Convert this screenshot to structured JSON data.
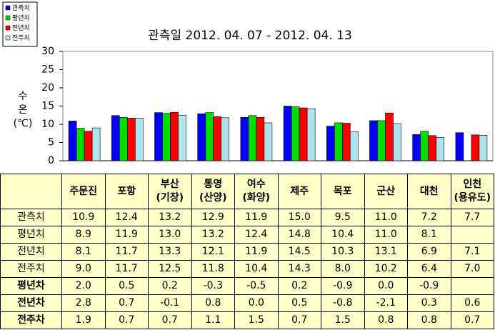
{
  "chart_data": {
    "type": "bar",
    "title": "관측일 2012. 04. 07  -  2012. 04. 13",
    "y_label": "수\n온\n(℃)",
    "categories": [
      "주문진",
      "포항",
      "부산\n(기장)",
      "통영\n(산양)",
      "여수\n(화양)",
      "제주",
      "목포",
      "군산",
      "대천",
      "인천\n(용유도)"
    ],
    "ylim": [
      0,
      30
    ],
    "yticks": [
      0,
      5,
      10,
      15,
      20,
      25,
      30
    ],
    "grid": false,
    "legend": "top-left",
    "series": [
      {
        "name": "관측치",
        "color": "#0000ff",
        "values": [
          10.9,
          12.4,
          13.2,
          12.9,
          11.9,
          15.0,
          9.5,
          11.0,
          7.2,
          7.7
        ],
        "value_labels": [
          "10.9",
          "12.4",
          "13.2",
          "12.9",
          "11.9",
          "15.0",
          "9.5",
          "11.0",
          "7.2",
          "7.7"
        ]
      },
      {
        "name": "평년치",
        "color": "#00dd00",
        "values": [
          8.9,
          11.9,
          13.0,
          13.2,
          12.4,
          14.8,
          10.4,
          11.0,
          8.1,
          null
        ],
        "value_labels": [
          "8.9",
          "11.9",
          "13.0",
          "13.2",
          "12.4",
          "14.8",
          "10.4",
          "11.0",
          "8.1",
          null
        ]
      },
      {
        "name": "전년치",
        "color": "#ff0000",
        "values": [
          8.1,
          11.7,
          13.3,
          12.1,
          11.9,
          14.5,
          10.3,
          13.1,
          6.9,
          7.1
        ],
        "value_labels": [
          "8.1",
          "11.7",
          "13.3",
          "12.1",
          "11.9",
          "14.5",
          "10.3",
          "13.1",
          "6.9",
          "7.1"
        ]
      },
      {
        "name": "전주치",
        "color": "#b0e4ec",
        "values": [
          9.0,
          11.7,
          12.5,
          11.8,
          10.4,
          14.3,
          8.0,
          10.2,
          6.4,
          7.0
        ],
        "value_labels": [
          "9.0",
          "11.7",
          "12.5",
          "11.8",
          "10.4",
          "14.3",
          "8.0",
          "10.2",
          "6.4",
          "7.0"
        ]
      }
    ]
  },
  "table": {
    "rows": [
      {
        "label": "평년차",
        "cells": [
          "2.0",
          "0.5",
          "0.2",
          "-0.3",
          "-0.5",
          "0.2",
          "-0.9",
          "0.0",
          "-0.9",
          null
        ]
      },
      {
        "label": "전년차",
        "cells": [
          "2.8",
          "0.7",
          "-0.1",
          "0.8",
          "0.0",
          "0.5",
          "-0.8",
          "-2.1",
          "0.3",
          "0.6"
        ]
      },
      {
        "label": "전주차",
        "cells": [
          "1.9",
          "0.7",
          "0.7",
          "1.1",
          "1.5",
          "0.7",
          "1.5",
          "0.8",
          "0.8",
          "0.7"
        ]
      }
    ]
  }
}
